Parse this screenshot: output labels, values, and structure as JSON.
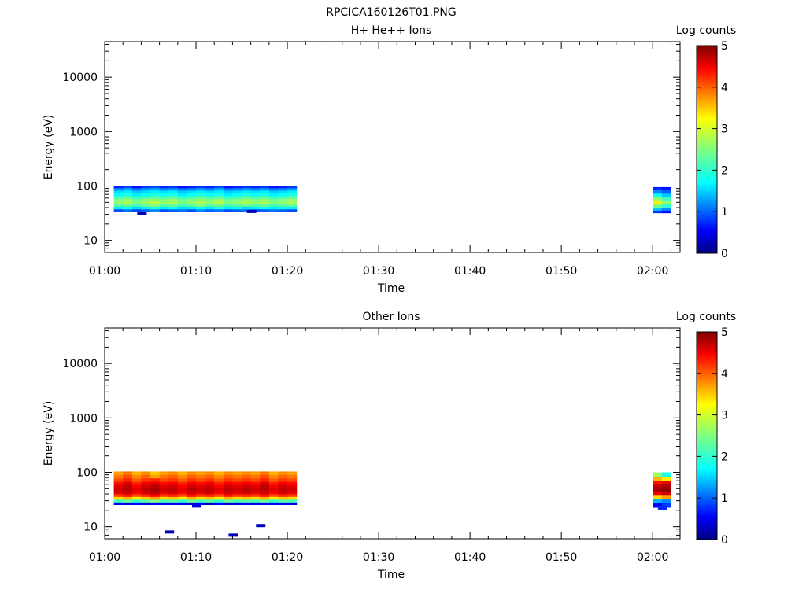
{
  "figure_title": "RPCICA160126T01.PNG",
  "colorbar": {
    "label": "Log counts",
    "ticks": [
      "0",
      "1",
      "2",
      "3",
      "4",
      "5"
    ],
    "colormap": "jet",
    "range": [
      0,
      5
    ]
  },
  "chart_data": [
    {
      "type": "heatmap",
      "title": "H+ He++ Ions",
      "xlabel": "Time",
      "ylabel": "Energy (eV)",
      "xticks": [
        "01:00",
        "01:10",
        "01:20",
        "01:30",
        "01:40",
        "01:50",
        "02:00"
      ],
      "xlim": [
        "01:00",
        "02:03"
      ],
      "yscale": "log",
      "yticks": [
        "10",
        "100",
        "1000",
        "10000"
      ],
      "ylim": [
        6,
        45000
      ],
      "blocks": [
        {
          "x_start": "01:01",
          "x_end": "01:21",
          "energy_levels_eV": [
            36,
            40,
            45,
            50,
            56,
            63,
            71,
            79,
            89,
            97
          ],
          "values": [
            [
              1.0,
              1.2,
              1.0,
              1.1,
              1.3,
              1.0,
              1.1,
              1.2,
              1.0,
              1.3,
              1.1,
              1.2,
              1.0,
              1.1,
              1.2,
              1.0,
              1.1,
              1.2,
              1.1,
              1.0
            ],
            [
              1.8,
              1.9,
              1.7,
              1.8,
              2.0,
              1.8,
              1.9,
              1.7,
              1.8,
              1.9,
              1.8,
              2.0,
              1.8,
              1.9,
              1.7,
              1.8,
              1.9,
              1.8,
              1.9,
              1.8
            ],
            [
              2.3,
              2.4,
              2.2,
              2.4,
              2.5,
              2.3,
              2.4,
              2.2,
              2.3,
              2.5,
              2.3,
              2.4,
              2.2,
              2.3,
              2.4,
              2.3,
              2.4,
              2.2,
              2.3,
              2.4
            ],
            [
              2.6,
              2.7,
              2.5,
              2.6,
              2.8,
              2.6,
              2.7,
              2.5,
              2.6,
              2.7,
              2.6,
              2.8,
              2.5,
              2.6,
              2.7,
              2.6,
              2.7,
              2.5,
              2.6,
              2.7
            ],
            [
              2.5,
              2.6,
              2.4,
              2.6,
              2.6,
              2.5,
              2.6,
              2.4,
              2.5,
              2.6,
              2.5,
              2.6,
              2.4,
              2.5,
              2.6,
              2.5,
              2.6,
              2.4,
              2.5,
              2.6
            ],
            [
              2.2,
              2.3,
              2.1,
              2.2,
              2.3,
              2.2,
              2.3,
              2.1,
              2.2,
              2.3,
              2.2,
              2.3,
              2.1,
              2.2,
              2.3,
              2.2,
              2.3,
              2.1,
              2.2,
              2.3
            ],
            [
              1.9,
              2.0,
              1.8,
              1.9,
              2.0,
              1.9,
              2.0,
              1.8,
              1.9,
              2.0,
              1.9,
              2.0,
              1.8,
              1.9,
              2.0,
              1.9,
              2.0,
              1.8,
              1.9,
              2.0
            ],
            [
              1.7,
              1.8,
              1.6,
              1.7,
              1.8,
              1.7,
              1.8,
              1.6,
              1.7,
              1.8,
              1.7,
              1.8,
              1.6,
              1.7,
              1.8,
              1.7,
              1.8,
              1.6,
              1.7,
              1.8
            ],
            [
              1.3,
              1.5,
              1.2,
              1.4,
              1.5,
              1.3,
              1.4,
              1.2,
              1.3,
              1.4,
              1.3,
              1.5,
              1.2,
              1.3,
              1.4,
              1.3,
              1.4,
              1.2,
              1.3,
              1.4
            ],
            [
              0.8,
              1.0,
              0.7,
              0.9,
              1.0,
              0.8,
              0.9,
              0.7,
              0.8,
              0.9,
              0.8,
              1.0,
              0.7,
              0.8,
              0.9,
              0.8,
              0.9,
              0.7,
              0.8,
              0.9
            ]
          ]
        },
        {
          "x_start": "02:00",
          "x_end": "02:02",
          "energy_levels_eV": [
            34,
            38,
            43,
            50,
            58,
            68,
            80,
            90
          ],
          "values": [
            [
              0.9,
              0.7
            ],
            [
              1.6,
              1.3
            ],
            [
              2.4,
              2.1
            ],
            [
              3.2,
              2.6
            ],
            [
              2.6,
              2.2
            ],
            [
              1.9,
              1.6
            ],
            [
              1.3,
              1.1
            ],
            [
              0.8,
              0.7
            ]
          ]
        }
      ],
      "isolated_points": [
        {
          "time": "01:04",
          "energy_eV": 31,
          "value": 0.3
        },
        {
          "time": "01:16",
          "energy_eV": 34,
          "value": 0.3
        }
      ]
    },
    {
      "type": "heatmap",
      "title": "Other Ions",
      "xlabel": "Time",
      "ylabel": "Energy (eV)",
      "xticks": [
        "01:00",
        "01:10",
        "01:20",
        "01:30",
        "01:40",
        "01:50",
        "02:00"
      ],
      "xlim": [
        "01:00",
        "02:03"
      ],
      "yscale": "log",
      "yticks": [
        "10",
        "100",
        "1000",
        "10000"
      ],
      "ylim": [
        6,
        45000
      ],
      "blocks": [
        {
          "x_start": "01:01",
          "x_end": "01:21",
          "energy_levels_eV": [
            27,
            30,
            34,
            38,
            43,
            49,
            56,
            64,
            73,
            85,
            97
          ],
          "values": [
            [
              0.6,
              0.5,
              0.6,
              0.4,
              0.6,
              0.5,
              0.6,
              0.5,
              0.4,
              0.6,
              0.3,
              0.6,
              0.4,
              0.5,
              0.6,
              0.4,
              0.6,
              0.5,
              0.6,
              0.5
            ],
            [
              2.2,
              2.4,
              2.1,
              2.3,
              2.5,
              2.2,
              2.3,
              2.1,
              2.4,
              2.2,
              2.3,
              2.1,
              2.4,
              2.2,
              2.3,
              2.2,
              2.4,
              2.1,
              2.3,
              2.2
            ],
            [
              3.3,
              3.5,
              3.2,
              3.4,
              3.6,
              3.3,
              3.4,
              3.2,
              3.5,
              3.3,
              3.4,
              3.2,
              3.5,
              3.3,
              3.4,
              3.3,
              3.5,
              3.2,
              3.4,
              3.3
            ],
            [
              4.1,
              4.3,
              4.0,
              4.2,
              4.4,
              4.1,
              4.2,
              4.0,
              4.3,
              4.1,
              4.2,
              4.0,
              4.3,
              4.1,
              4.2,
              4.1,
              4.3,
              4.0,
              4.2,
              4.1
            ],
            [
              4.5,
              4.6,
              4.4,
              4.6,
              4.7,
              4.5,
              4.6,
              4.4,
              4.6,
              4.5,
              4.6,
              4.4,
              4.6,
              4.5,
              4.6,
              4.5,
              4.6,
              4.4,
              4.6,
              4.5
            ],
            [
              4.6,
              4.7,
              4.5,
              4.7,
              4.8,
              4.6,
              4.7,
              4.5,
              4.7,
              4.6,
              4.7,
              4.5,
              4.7,
              4.6,
              4.7,
              4.6,
              4.7,
              4.5,
              4.7,
              4.6
            ],
            [
              4.5,
              4.7,
              4.4,
              4.6,
              4.7,
              4.5,
              4.6,
              4.4,
              4.6,
              4.5,
              4.6,
              4.4,
              4.6,
              4.5,
              4.6,
              4.5,
              4.7,
              4.4,
              4.6,
              4.5
            ],
            [
              4.3,
              4.5,
              4.2,
              4.4,
              4.5,
              4.3,
              4.4,
              4.2,
              4.4,
              4.3,
              4.4,
              4.2,
              4.4,
              4.3,
              4.4,
              4.3,
              4.5,
              4.2,
              4.4,
              4.3
            ],
            [
              4.0,
              4.2,
              3.9,
              4.1,
              4.2,
              4.0,
              4.1,
              3.9,
              4.1,
              4.0,
              4.1,
              3.9,
              4.1,
              4.0,
              4.1,
              4.0,
              4.2,
              3.9,
              4.1,
              4.0
            ],
            [
              3.8,
              4.0,
              3.7,
              3.9,
              3.6,
              3.8,
              3.9,
              3.7,
              3.9,
              3.8,
              3.9,
              3.7,
              3.9,
              3.8,
              3.9,
              3.8,
              4.0,
              3.7,
              3.9,
              3.8
            ],
            [
              3.6,
              3.8,
              3.5,
              3.7,
              3.4,
              3.6,
              3.7,
              3.5,
              3.7,
              3.6,
              3.7,
              3.5,
              3.7,
              3.6,
              3.7,
              3.6,
              3.8,
              3.5,
              3.7,
              3.6
            ]
          ]
        },
        {
          "x_start": "02:00",
          "x_end": "02:02",
          "energy_levels_eV": [
            25,
            30,
            35,
            41,
            48,
            56,
            65,
            78,
            92
          ],
          "values": [
            [
              0.6,
              0.9
            ],
            [
              1.5,
              1.3
            ],
            [
              3.3,
              3.6
            ],
            [
              4.4,
              4.6
            ],
            [
              4.8,
              4.9
            ],
            [
              4.7,
              4.8
            ],
            [
              4.3,
              4.5
            ],
            [
              3.5,
              3.2
            ],
            [
              2.6,
              2.0
            ]
          ]
        }
      ],
      "isolated_points": [
        {
          "time": "01:07",
          "energy_eV": 8,
          "value": 0.3
        },
        {
          "time": "01:14",
          "energy_eV": 7,
          "value": 0.3
        },
        {
          "time": "01:17",
          "energy_eV": 10.5,
          "value": 0.3
        },
        {
          "time": "01:10",
          "energy_eV": 24,
          "value": 0.5
        },
        {
          "time": "02:01",
          "energy_eV": 22,
          "value": 0.8
        }
      ]
    }
  ]
}
